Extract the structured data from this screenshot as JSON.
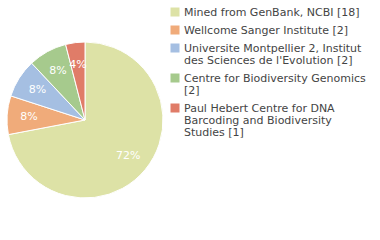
{
  "chart_data": {
    "type": "pie",
    "categories": [
      "Mined from GenBank, NCBI [18]",
      "Wellcome Sanger Institute [2]",
      "Universite Montpellier 2, Institut des Sciences de l'Evolution [2]",
      "Centre for Biodiversity Genomics [2]",
      "Paul Hebert Centre for DNA Barcoding and Biodiversity Studies [1]"
    ],
    "values": [
      72,
      8,
      8,
      8,
      4
    ],
    "value_labels": [
      "72%",
      "8%",
      "8%",
      "8%",
      "4%"
    ],
    "colors": [
      "#dde2a6",
      "#f0ab7a",
      "#a5bfe2",
      "#a6ca8d",
      "#e07c68"
    ],
    "data_labels": true,
    "legend": "right"
  }
}
